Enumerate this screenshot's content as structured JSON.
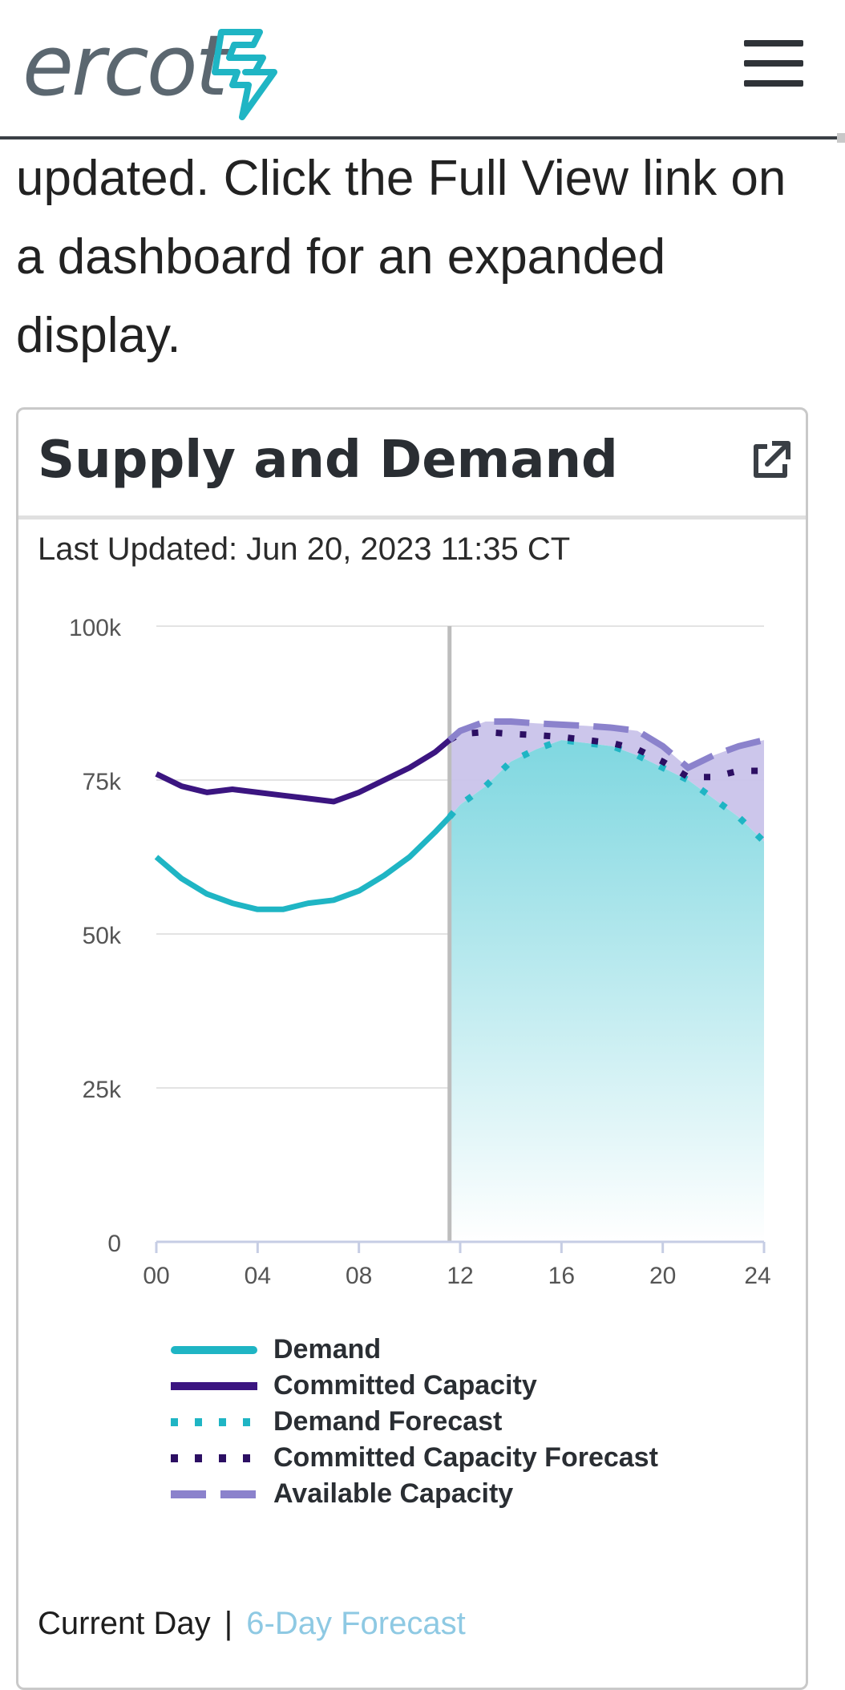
{
  "header": {
    "logo_text": "ercot",
    "logo_icon": "ercot-bolt-logo",
    "menu_icon": "hamburger-menu-icon"
  },
  "intro": {
    "text": "updated. Click the Full View link on a dashboard for an expanded display."
  },
  "card": {
    "title": "Supply and Demand",
    "link_icon": "external-link-icon",
    "last_updated": "Last Updated: Jun 20, 2023 11:35 CT",
    "footer": {
      "current": "Current Day",
      "separator": "|",
      "link": "6-Day Forecast"
    }
  },
  "colors": {
    "demand": "#1fb5c4",
    "committed": "#3b1580",
    "demand_forecast": "#1fb5c4",
    "committed_forecast": "#2c0f63",
    "available": "#8b82cc",
    "available_fill": "#c9c3ea",
    "demand_fill_top": "#7fd7e0",
    "now_line": "#bdbdbd"
  },
  "chart_data": {
    "type": "line",
    "title": "Supply and Demand",
    "xlabel": "",
    "ylabel": "",
    "xlim": [
      0,
      24
    ],
    "ylim": [
      0,
      100000
    ],
    "x_ticks": [
      "00",
      "04",
      "08",
      "12",
      "16",
      "20",
      "24"
    ],
    "y_ticks": [
      "100k",
      "75k",
      "50k",
      "25k",
      "0"
    ],
    "now_hour": 11.58,
    "grid": true,
    "legend_position": "bottom",
    "series": [
      {
        "name": "Demand",
        "style": "solid",
        "x": [
          0,
          1,
          2,
          3,
          4,
          5,
          6,
          7,
          8,
          9,
          10,
          11,
          11.58
        ],
        "values": [
          62500,
          59000,
          56500,
          55000,
          54000,
          54000,
          55000,
          55500,
          57000,
          59500,
          62500,
          66500,
          69000
        ]
      },
      {
        "name": "Committed Capacity",
        "style": "solid",
        "x": [
          0,
          1,
          2,
          3,
          4,
          5,
          6,
          7,
          8,
          9,
          10,
          11,
          11.58
        ],
        "values": [
          76000,
          74000,
          73000,
          73500,
          73000,
          72500,
          72000,
          71500,
          73000,
          75000,
          77000,
          79500,
          81500
        ]
      },
      {
        "name": "Demand Forecast",
        "style": "dotted",
        "x": [
          11.58,
          12,
          13,
          14,
          15,
          16,
          17,
          18,
          19,
          20,
          21,
          22,
          23,
          24
        ],
        "values": [
          69000,
          71000,
          74000,
          78000,
          80000,
          81500,
          81000,
          80500,
          79000,
          77000,
          75000,
          72000,
          69000,
          65000
        ]
      },
      {
        "name": "Committed Capacity Forecast",
        "style": "dotted",
        "x": [
          11.58,
          12,
          13,
          14,
          15,
          16,
          17,
          18,
          19,
          20,
          21,
          22,
          23,
          24
        ],
        "values": [
          81500,
          82500,
          82800,
          82500,
          82300,
          82000,
          81500,
          81000,
          80000,
          78000,
          75500,
          75500,
          76500,
          76500
        ]
      },
      {
        "name": "Available Capacity",
        "style": "dashed",
        "x": [
          11.58,
          12,
          13,
          14,
          15,
          16,
          17,
          18,
          19,
          20,
          21,
          22,
          23,
          24
        ],
        "values": [
          81500,
          83000,
          84500,
          84500,
          84200,
          84000,
          83800,
          83500,
          83000,
          80500,
          77000,
          79000,
          80500,
          81500
        ]
      }
    ]
  }
}
